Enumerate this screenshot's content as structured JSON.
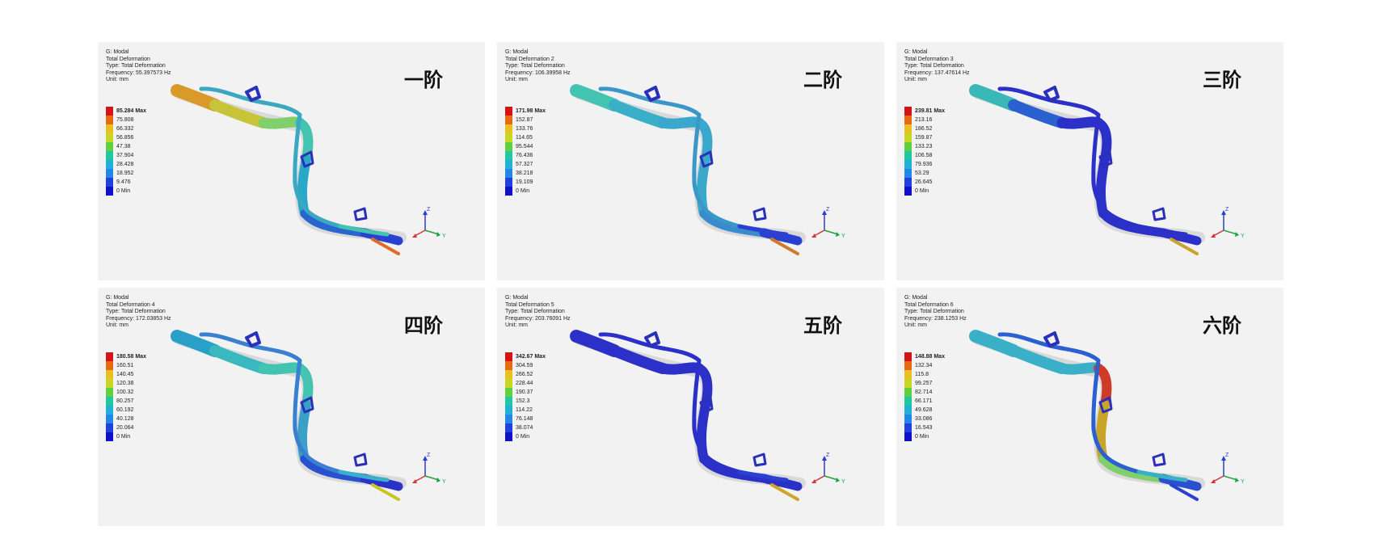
{
  "panels": [
    {
      "id": "mode1",
      "title": "G: Modal",
      "result": "Total Deformation",
      "type": "Type: Total Deformation",
      "frequency": "Frequency: 55.397573 Hz",
      "unit": "Unit: mm",
      "legend": [
        "85.284 Max",
        "75.808",
        "66.332",
        "56.856",
        "47.38",
        "37.904",
        "28.428",
        "18.952",
        "9.476",
        "0 Min"
      ],
      "mode_label": "一阶",
      "colors": {
        "s1": "#d99a2a",
        "s2": "#c8c43a",
        "s3": "#7fd06a",
        "s4": "#43c4b0",
        "s5": "#2aa8c8",
        "s6": "#2a64d0",
        "s7": "#2a40d0",
        "s8": "#3aa8c0",
        "s9": "#43c4b0",
        "s10": "#e06a2a"
      }
    },
    {
      "id": "mode2",
      "title": "G: Modal",
      "result": "Total Deformation 2",
      "type": "Type: Total Deformation",
      "frequency": "Frequency: 106.39958 Hz",
      "unit": "Unit: mm",
      "legend": [
        "171.98 Max",
        "152.87",
        "133.76",
        "114.65",
        "95.544",
        "76.436",
        "57.327",
        "38.218",
        "19.109",
        "0 Min"
      ],
      "mode_label": "二阶",
      "colors": {
        "s1": "#43c4b0",
        "s2": "#3ab0c8",
        "s3": "#3aa8cc",
        "s4": "#3aa8cc",
        "s5": "#3aa8cc",
        "s6": "#3a8ad0",
        "s7": "#2a40d0",
        "s8": "#3a98c8",
        "s9": "#2a40d0",
        "s10": "#d07a2a"
      }
    },
    {
      "id": "mode3",
      "title": "G: Modal",
      "result": "Total Deformation 3",
      "type": "Type: Total Deformation",
      "frequency": "Frequency: 137.47614 Hz",
      "unit": "Unit: mm",
      "legend": [
        "239.81 Max",
        "213.16",
        "186.52",
        "159.87",
        "133.23",
        "106.58",
        "79.936",
        "53.29",
        "26.645",
        "0 Min"
      ],
      "mode_label": "三阶",
      "colors": {
        "s1": "#3ab8b8",
        "s2": "#2a60d0",
        "s3": "#2a30c8",
        "s4": "#2a30c8",
        "s5": "#2a30c8",
        "s6": "#2a30c8",
        "s7": "#2a30c8",
        "s8": "#2a30c8",
        "s9": "#2a30c8",
        "s10": "#c8a42a"
      }
    },
    {
      "id": "mode4",
      "title": "G: Modal",
      "result": "Total Deformation 4",
      "type": "Type: Total Deformation",
      "frequency": "Frequency: 172.03853 Hz",
      "unit": "Unit: mm",
      "legend": [
        "180.58 Max",
        "160.51",
        "140.45",
        "120.38",
        "100.32",
        "80.257",
        "60.192",
        "40.128",
        "20.064",
        "0 Min"
      ],
      "mode_label": "四阶",
      "colors": {
        "s1": "#2aa0c8",
        "s2": "#3ab8c0",
        "s3": "#43c4b0",
        "s4": "#43c4b0",
        "s5": "#3aa0c8",
        "s6": "#2a50d0",
        "s7": "#2a30c8",
        "s8": "#3a80d0",
        "s9": "#3ab0c8",
        "s10": "#c8c42a"
      }
    },
    {
      "id": "mode5",
      "title": "G: Modal",
      "result": "Total Deformation 5",
      "type": "Type: Total Deformation",
      "frequency": "Frequency: 203.76091 Hz",
      "unit": "Unit: mm",
      "legend": [
        "342.67 Max",
        "304.59",
        "266.52",
        "228.44",
        "190.37",
        "152.3",
        "114.22",
        "76.148",
        "38.074",
        "0 Min"
      ],
      "mode_label": "五阶",
      "colors": {
        "s1": "#2a30c8",
        "s2": "#2a30c8",
        "s3": "#2a30c8",
        "s4": "#2a30c8",
        "s5": "#2a30c8",
        "s6": "#2a30c8",
        "s7": "#2a30c8",
        "s8": "#2a30c8",
        "s9": "#2a40d0",
        "s10": "#d0a42a"
      }
    },
    {
      "id": "mode6",
      "title": "G: Modal",
      "result": "Total Deformation 6",
      "type": "Type: Total Deformation",
      "frequency": "Frequency: 238.1253 Hz",
      "unit": "Unit: mm",
      "legend": [
        "148.88 Max",
        "132.34",
        "115.8",
        "99.257",
        "82.714",
        "66.171",
        "49.628",
        "33.086",
        "16.543",
        "0 Min"
      ],
      "mode_label": "六阶",
      "colors": {
        "s1": "#3ab0c8",
        "s2": "#3ab0c8",
        "s3": "#3ab0c8",
        "s4": "#d03a2a",
        "s5": "#c8a42a",
        "s6": "#7fd06a",
        "s7": "#2a50d0",
        "s8": "#2a60d0",
        "s9": "#3ab0c8",
        "s10": "#2a40d0"
      }
    }
  ],
  "legend_colors": [
    "#d41414",
    "#e86a10",
    "#e8c020",
    "#c8d820",
    "#60d040",
    "#20c8a0",
    "#20b0d8",
    "#2088e8",
    "#2040e0",
    "#1010c8"
  ],
  "axes": {
    "z": "Z",
    "y": "Y"
  }
}
